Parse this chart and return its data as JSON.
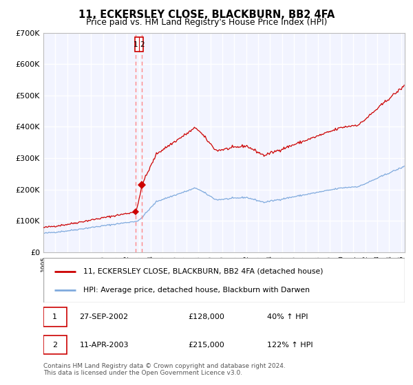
{
  "title": "11, ECKERSLEY CLOSE, BLACKBURN, BB2 4FA",
  "subtitle": "Price paid vs. HM Land Registry's House Price Index (HPI)",
  "red_label": "11, ECKERSLEY CLOSE, BLACKBURN, BB2 4FA (detached house)",
  "blue_label": "HPI: Average price, detached house, Blackburn with Darwen",
  "transaction1_date": "27-SEP-2002",
  "transaction1_price": 128000,
  "transaction1_hpi": "40% ↑ HPI",
  "transaction2_date": "11-APR-2003",
  "transaction2_price": 215000,
  "transaction2_hpi": "122% ↑ HPI",
  "footer": "Contains HM Land Registry data © Crown copyright and database right 2024.\nThis data is licensed under the Open Government Licence v3.0.",
  "ylim": [
    0,
    700000
  ],
  "yticks": [
    0,
    100000,
    200000,
    300000,
    400000,
    500000,
    600000,
    700000
  ],
  "ytick_labels": [
    "£0",
    "£100K",
    "£200K",
    "£300K",
    "£400K",
    "£500K",
    "£600K",
    "£700K"
  ],
  "xlim_start": 1995,
  "xlim_end": 2025.3,
  "background_color": "#f2f4ff",
  "grid_color": "#ffffff",
  "red_color": "#cc0000",
  "blue_color": "#7faadd",
  "dashed_color": "#ff8888",
  "transaction1_x": 2002.74,
  "transaction2_x": 2003.27,
  "seed": 42
}
